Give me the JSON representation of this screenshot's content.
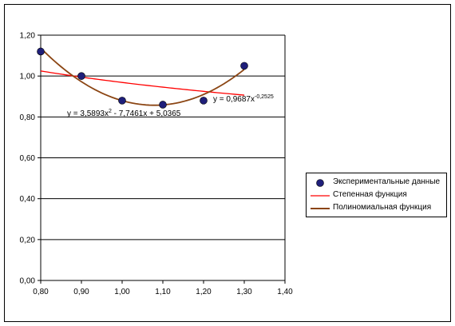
{
  "chart_data": {
    "type": "scatter",
    "title": "",
    "xlabel": "",
    "ylabel": "",
    "xlim": [
      0.8,
      1.4
    ],
    "ylim": [
      0.0,
      1.2
    ],
    "x_ticks": [
      "0,80",
      "0,90",
      "1,00",
      "1,10",
      "1,20",
      "1,30",
      "1,40"
    ],
    "y_ticks": [
      "0,00",
      "0,20",
      "0,40",
      "0,60",
      "0,80",
      "1,00",
      "1,20"
    ],
    "grid": "horizontal major",
    "legend_position": "right",
    "series": [
      {
        "name": "Экспериментальные данные",
        "kind": "markers",
        "color": "#1f1f7a",
        "x": [
          0.8,
          0.9,
          1.0,
          1.1,
          1.2,
          1.3
        ],
        "y": [
          1.12,
          1.0,
          0.88,
          0.86,
          0.88,
          1.05
        ]
      },
      {
        "name": "Степенная функция",
        "kind": "power-trendline",
        "color": "#ff0000",
        "coef": 0.9687,
        "exponent": -0.2525,
        "x_range": [
          0.8,
          1.3
        ]
      },
      {
        "name": "Полиномиальная функция",
        "kind": "poly2-trendline",
        "color": "#8b4513",
        "coefs": [
          3.5893,
          -7.7461,
          5.0365
        ],
        "x_range": [
          0.8,
          1.3
        ]
      }
    ],
    "annotations": [
      {
        "id": "poly",
        "pre": "y = 3,5893x",
        "sup": "2",
        "post": " - 7,7461x + 5,0365"
      },
      {
        "id": "power",
        "pre": "y = 0,9687x",
        "sup": "-0,2525",
        "post": ""
      }
    ]
  }
}
